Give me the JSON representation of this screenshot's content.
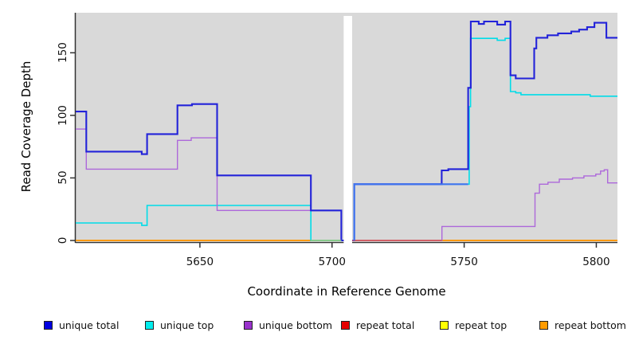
{
  "chart_data": {
    "type": "line",
    "line_style": "step",
    "title": "",
    "xlabel": "Coordinate in Reference Genome",
    "ylabel": "Read Coverage Depth",
    "xlim": [
      5603,
      5808
    ],
    "ylim": [
      0,
      182
    ],
    "xticks": [
      5650,
      5700,
      5750,
      5800
    ],
    "yticks": [
      0,
      50,
      100,
      150
    ],
    "grid": false,
    "plot_bg": "#d9d9d9",
    "axis_color": "#333333",
    "legend_position": "bottom",
    "gap_region": {
      "x_start": 5704.4,
      "x_end": 5707.6,
      "fill": "#ffffff"
    },
    "draw_order": [
      3,
      4,
      5,
      1,
      2,
      0
    ],
    "series": [
      {
        "name": "unique total",
        "line_color": "#2323d9",
        "line_width": 2.1,
        "segments": [
          [
            [
              5603,
              103
            ],
            [
              5607,
              103
            ],
            [
              5607,
              71
            ],
            [
              5628,
              71
            ],
            [
              5628,
              69
            ],
            [
              5630,
              69
            ],
            [
              5630,
              85
            ],
            [
              5641.5,
              85
            ],
            [
              5641.5,
              108
            ],
            [
              5647,
              108
            ],
            [
              5647,
              109
            ],
            [
              5656.5,
              109
            ],
            [
              5656.5,
              52
            ],
            [
              5692,
              52
            ],
            [
              5692,
              24
            ],
            [
              5703.5,
              24
            ],
            [
              5703.5,
              0
            ],
            [
              5704.4,
              0
            ]
          ],
          [
            [
              5707.6,
              0
            ],
            [
              5708.4,
              0
            ],
            [
              5708.4,
              45
            ],
            [
              5741.5,
              45
            ],
            [
              5741.5,
              56
            ],
            [
              5744,
              56
            ],
            [
              5744,
              57
            ],
            [
              5751.5,
              57
            ],
            [
              5751.5,
              122
            ],
            [
              5752.5,
              122
            ],
            [
              5752.5,
              175
            ],
            [
              5755.5,
              175
            ],
            [
              5755.5,
              173
            ],
            [
              5757.5,
              173
            ],
            [
              5757.5,
              175
            ],
            [
              5762.5,
              175
            ],
            [
              5762.5,
              172.5
            ],
            [
              5765.5,
              172.5
            ],
            [
              5765.5,
              175
            ],
            [
              5767.5,
              175
            ],
            [
              5767.5,
              132
            ],
            [
              5769.5,
              132
            ],
            [
              5769.5,
              129.5
            ],
            [
              5776.5,
              129.5
            ],
            [
              5776.5,
              153.5
            ],
            [
              5777.3,
              153.5
            ],
            [
              5777.3,
              162
            ],
            [
              5781.5,
              162
            ],
            [
              5781.5,
              164
            ],
            [
              5785.5,
              164
            ],
            [
              5785.5,
              165.5
            ],
            [
              5790.5,
              165.5
            ],
            [
              5790.5,
              167
            ],
            [
              5793.5,
              167
            ],
            [
              5793.5,
              168.5
            ],
            [
              5796.5,
              168.5
            ],
            [
              5796.5,
              170.5
            ],
            [
              5799.3,
              170.5
            ],
            [
              5799.3,
              174
            ],
            [
              5803.8,
              174
            ],
            [
              5803.8,
              162
            ],
            [
              5808,
              162
            ]
          ]
        ]
      },
      {
        "name": "unique top",
        "line_color": "#00dce8",
        "line_width": 1.6,
        "segments": [
          [
            [
              5603,
              14
            ],
            [
              5628,
              14
            ],
            [
              5628,
              12
            ],
            [
              5630,
              12
            ],
            [
              5630,
              28
            ],
            [
              5692,
              28
            ],
            [
              5692,
              0
            ],
            [
              5704.4,
              0
            ]
          ],
          [
            [
              5707.6,
              0
            ],
            [
              5708.4,
              0
            ],
            [
              5708.4,
              45
            ],
            [
              5751.9,
              45
            ],
            [
              5751.9,
              107
            ],
            [
              5752.4,
              107
            ],
            [
              5752.4,
              161.5
            ],
            [
              5762.5,
              161.5
            ],
            [
              5762.5,
              160
            ],
            [
              5765.5,
              160
            ],
            [
              5765.5,
              161.5
            ],
            [
              5767.5,
              161.5
            ],
            [
              5767.5,
              119
            ],
            [
              5769.5,
              119
            ],
            [
              5769.5,
              118
            ],
            [
              5771.5,
              118
            ],
            [
              5771.5,
              116.5
            ],
            [
              5797.7,
              116.5
            ],
            [
              5797.7,
              115.3
            ],
            [
              5808,
              115.3
            ]
          ]
        ]
      },
      {
        "name": "unique bottom",
        "line_color": "#ad68da",
        "line_width": 1.4,
        "segments": [
          [
            [
              5603,
              89
            ],
            [
              5607,
              89
            ],
            [
              5607,
              57
            ],
            [
              5641.5,
              57
            ],
            [
              5641.5,
              80
            ],
            [
              5646.7,
              80
            ],
            [
              5646.7,
              82
            ],
            [
              5656.5,
              82
            ],
            [
              5656.5,
              24
            ],
            [
              5703.5,
              24
            ],
            [
              5703.5,
              0
            ],
            [
              5704.4,
              0
            ]
          ],
          [
            [
              5707.6,
              0
            ],
            [
              5741.6,
              0
            ],
            [
              5741.6,
              11.2
            ],
            [
              5776.8,
              11.2
            ],
            [
              5776.8,
              37.8
            ],
            [
              5778.5,
              37.8
            ],
            [
              5778.5,
              45
            ],
            [
              5781.7,
              45
            ],
            [
              5781.7,
              46.5
            ],
            [
              5786,
              46.5
            ],
            [
              5786,
              49
            ],
            [
              5791,
              49
            ],
            [
              5791,
              50
            ],
            [
              5795.3,
              50
            ],
            [
              5795.3,
              51.6
            ],
            [
              5799.8,
              51.6
            ],
            [
              5799.8,
              53
            ],
            [
              5801.6,
              53
            ],
            [
              5801.6,
              55.5
            ],
            [
              5803,
              55.5
            ],
            [
              5803,
              56.5
            ],
            [
              5804.3,
              56.5
            ],
            [
              5804.3,
              46
            ],
            [
              5808,
              46
            ]
          ]
        ]
      },
      {
        "name": "repeat total",
        "line_color": "#e00000",
        "line_width": 1.6,
        "segments": [
          [
            [
              5603,
              0
            ],
            [
              5704.4,
              0
            ]
          ],
          [
            [
              5707.6,
              0
            ],
            [
              5808,
              0
            ]
          ]
        ]
      },
      {
        "name": "repeat top",
        "line_color": "#ffff00",
        "line_width": 1.6,
        "segments": [
          [
            [
              5603,
              0
            ],
            [
              5704.4,
              0
            ]
          ],
          [
            [
              5707.6,
              0
            ],
            [
              5808,
              0
            ]
          ]
        ]
      },
      {
        "name": "repeat bottom",
        "line_color": "#ff9500",
        "line_width": 1.8,
        "segments": [
          [
            [
              5603,
              0
            ],
            [
              5704.4,
              0
            ]
          ],
          [
            [
              5707.6,
              0
            ],
            [
              5808,
              0
            ]
          ]
        ]
      }
    ],
    "overlays": [
      {
        "name": "unique-top-zero-over-orange",
        "points": [
          [
            5692,
            0
          ],
          [
            5703.5,
            0
          ]
        ],
        "color": "#8bcf92",
        "width": 1.6
      },
      {
        "name": "repeat-total-zero-visible",
        "points": [
          [
            5707.6,
            0
          ],
          [
            5741.6,
            0
          ]
        ],
        "color": "#d05565",
        "width": 1.6
      },
      {
        "name": "unique-total-over-top-blend",
        "points": [
          [
            5708.4,
            0
          ],
          [
            5708.4,
            45
          ],
          [
            5751.5,
            45
          ]
        ],
        "color": "#3e74ee",
        "width": 2.2
      }
    ]
  },
  "legend": {
    "items": [
      {
        "label": "unique total",
        "color": "#0000e1"
      },
      {
        "label": "unique top",
        "color": "#00eded"
      },
      {
        "label": "unique bottom",
        "color": "#9932cc"
      },
      {
        "label": "repeat total",
        "color": "#e60000"
      },
      {
        "label": "repeat top",
        "color": "#ffff00"
      },
      {
        "label": "repeat bottom",
        "color": "#ff9b00"
      }
    ]
  }
}
